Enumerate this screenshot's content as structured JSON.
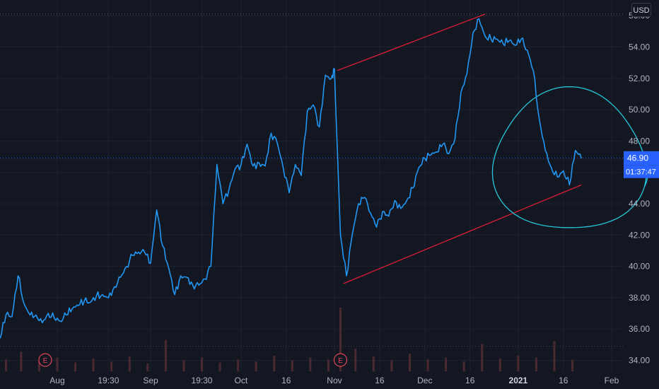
{
  "currency": "USD",
  "price_badge": {
    "value": "46.90",
    "countdown": "01:37:47",
    "color": "#2962ff"
  },
  "earnings_marker": "E",
  "colors": {
    "background": "#131722",
    "grid": "#1e222d",
    "price_line": "#2196f3",
    "channel": "#e91e37",
    "circle": "#26c6da",
    "volume": "#4a2a30",
    "earnings": "#e0455a"
  },
  "chart_data": {
    "type": "line",
    "title": "",
    "xlabel": "",
    "ylabel": "",
    "y_axis_side": "right",
    "grid": true,
    "ylim": [
      33.3,
      57.0
    ],
    "yticks": [
      34,
      36,
      38,
      40,
      42,
      44,
      46,
      48,
      50,
      52,
      54,
      56
    ],
    "ytick_labels": [
      "34.00",
      "36.00",
      "38.00",
      "40.00",
      "42.00",
      "44.00",
      "46.00",
      "48.00",
      "50.00",
      "52.00",
      "54.00",
      "56.00"
    ],
    "x_start": "2020-07-13",
    "x_end": "2021-02-05",
    "xticks": [
      {
        "date": "2020-08-01",
        "label": "Aug"
      },
      {
        "date": "2020-08-18",
        "label": "19:30"
      },
      {
        "date": "2020-09-01",
        "label": "Sep"
      },
      {
        "date": "2020-09-18",
        "label": "19:30"
      },
      {
        "date": "2020-10-01",
        "label": "Oct"
      },
      {
        "date": "2020-10-16",
        "label": "16"
      },
      {
        "date": "2020-11-01",
        "label": "Nov"
      },
      {
        "date": "2020-11-16",
        "label": "16"
      },
      {
        "date": "2020-12-01",
        "label": "Dec"
      },
      {
        "date": "2020-12-16",
        "label": "16"
      },
      {
        "date": "2021-01-01",
        "label": "2021",
        "bold": true
      },
      {
        "date": "2021-01-16",
        "label": "16"
      },
      {
        "date": "2021-02-01",
        "label": "Feb"
      }
    ],
    "series": [
      {
        "x": [
          "2020-07-13",
          "2020-07-15",
          "2020-07-17",
          "2020-07-19",
          "2020-07-21",
          "2020-07-23",
          "2020-07-25",
          "2020-07-27",
          "2020-07-29",
          "2020-07-31",
          "2020-08-02",
          "2020-08-04",
          "2020-08-06",
          "2020-08-08",
          "2020-08-10",
          "2020-08-12",
          "2020-08-14",
          "2020-08-16",
          "2020-08-18",
          "2020-08-20",
          "2020-08-22",
          "2020-08-24",
          "2020-08-26",
          "2020-08-28",
          "2020-08-30",
          "2020-09-01",
          "2020-09-03",
          "2020-09-05",
          "2020-09-07",
          "2020-09-09",
          "2020-09-11",
          "2020-09-13",
          "2020-09-15",
          "2020-09-17",
          "2020-09-19",
          "2020-09-21",
          "2020-09-23",
          "2020-09-25",
          "2020-09-27",
          "2020-09-29",
          "2020-10-01",
          "2020-10-03",
          "2020-10-05",
          "2020-10-07",
          "2020-10-09",
          "2020-10-11",
          "2020-10-13",
          "2020-10-15",
          "2020-10-17",
          "2020-10-19",
          "2020-10-21",
          "2020-10-23",
          "2020-10-25",
          "2020-10-27",
          "2020-10-29",
          "2020-10-31",
          "2020-11-01",
          "2020-11-03",
          "2020-11-05",
          "2020-11-07",
          "2020-11-09",
          "2020-11-11",
          "2020-11-13",
          "2020-11-15",
          "2020-11-17",
          "2020-11-19",
          "2020-11-21",
          "2020-11-23",
          "2020-11-25",
          "2020-11-27",
          "2020-11-29",
          "2020-12-01",
          "2020-12-03",
          "2020-12-05",
          "2020-12-07",
          "2020-12-09",
          "2020-12-11",
          "2020-12-13",
          "2020-12-15",
          "2020-12-17",
          "2020-12-19",
          "2020-12-21",
          "2020-12-23",
          "2020-12-25",
          "2020-12-27",
          "2020-12-29",
          "2020-12-31",
          "2021-01-02",
          "2021-01-04",
          "2021-01-06",
          "2021-01-08",
          "2021-01-10",
          "2021-01-12",
          "2021-01-14",
          "2021-01-16",
          "2021-01-18",
          "2021-01-20",
          "2021-01-22"
        ],
        "values": [
          35.4,
          36.9,
          36.8,
          39.4,
          37.6,
          36.9,
          36.9,
          36.4,
          37.0,
          36.7,
          36.5,
          36.9,
          37.3,
          37.5,
          37.8,
          37.7,
          38.1,
          38.2,
          38.0,
          38.7,
          39.3,
          40.0,
          40.7,
          40.9,
          40.9,
          40.2,
          43.6,
          41.3,
          39.9,
          38.2,
          39.4,
          39.3,
          38.8,
          38.8,
          39.2,
          40.0,
          46.5,
          44.0,
          44.9,
          46.2,
          46.5,
          47.8,
          46.4,
          46.6,
          46.4,
          48.5,
          47.9,
          46.3,
          44.7,
          46.5,
          45.8,
          49.9,
          50.3,
          48.9,
          52.2,
          52.0,
          52.6,
          42.0,
          39.4,
          42.1,
          44.0,
          44.4,
          43.4,
          42.5,
          43.5,
          43.2,
          44.2,
          43.7,
          44.2,
          45.0,
          46.3,
          46.9,
          47.1,
          47.3,
          47.8,
          47.2,
          48.1,
          51.1,
          52.3,
          54.9,
          55.8,
          54.7,
          54.5,
          54.5,
          54.2,
          54.4,
          54.1,
          54.5,
          53.8,
          52.5,
          49.4,
          47.4,
          46.3,
          45.7,
          46.1,
          45.2,
          47.4,
          46.9
        ]
      }
    ],
    "volume": {
      "x": [
        "2020-07-15",
        "2020-07-20",
        "2020-07-26",
        "2020-08-01",
        "2020-08-07",
        "2020-08-13",
        "2020-08-19",
        "2020-08-25",
        "2020-08-31",
        "2020-09-06",
        "2020-09-12",
        "2020-09-18",
        "2020-09-24",
        "2020-09-30",
        "2020-10-06",
        "2020-10-12",
        "2020-10-18",
        "2020-10-24",
        "2020-10-30",
        "2020-11-03",
        "2020-11-08",
        "2020-11-14",
        "2020-11-20",
        "2020-11-26",
        "2020-12-02",
        "2020-12-08",
        "2020-12-14",
        "2020-12-20",
        "2020-12-26",
        "2021-01-01",
        "2021-01-07",
        "2021-01-13",
        "2021-01-19"
      ],
      "values": [
        1.2,
        2.0,
        1.0,
        1.4,
        0.9,
        1.3,
        1.0,
        1.5,
        0.8,
        3.2,
        1.1,
        1.4,
        0.9,
        1.2,
        1.0,
        1.6,
        1.1,
        1.4,
        1.2,
        6.5,
        2.3,
        1.5,
        1.1,
        1.8,
        1.2,
        1.4,
        1.0,
        2.8,
        1.3,
        1.6,
        1.4,
        3.1,
        1.2
      ]
    },
    "earnings_dates": [
      "2020-07-28",
      "2020-11-03"
    ],
    "channel_lines": [
      {
        "x": [
          "2020-11-02",
          "2020-12-21"
        ],
        "y": [
          52.5,
          56.1
        ]
      },
      {
        "x": [
          "2020-11-04",
          "2021-01-22"
        ],
        "y": [
          38.9,
          45.2
        ]
      }
    ],
    "annotation_circle": {
      "center": {
        "date": "2021-01-18",
        "value": 46.7
      },
      "rx_days": 9,
      "ry_value": 4.5
    },
    "last_price": 46.9
  }
}
